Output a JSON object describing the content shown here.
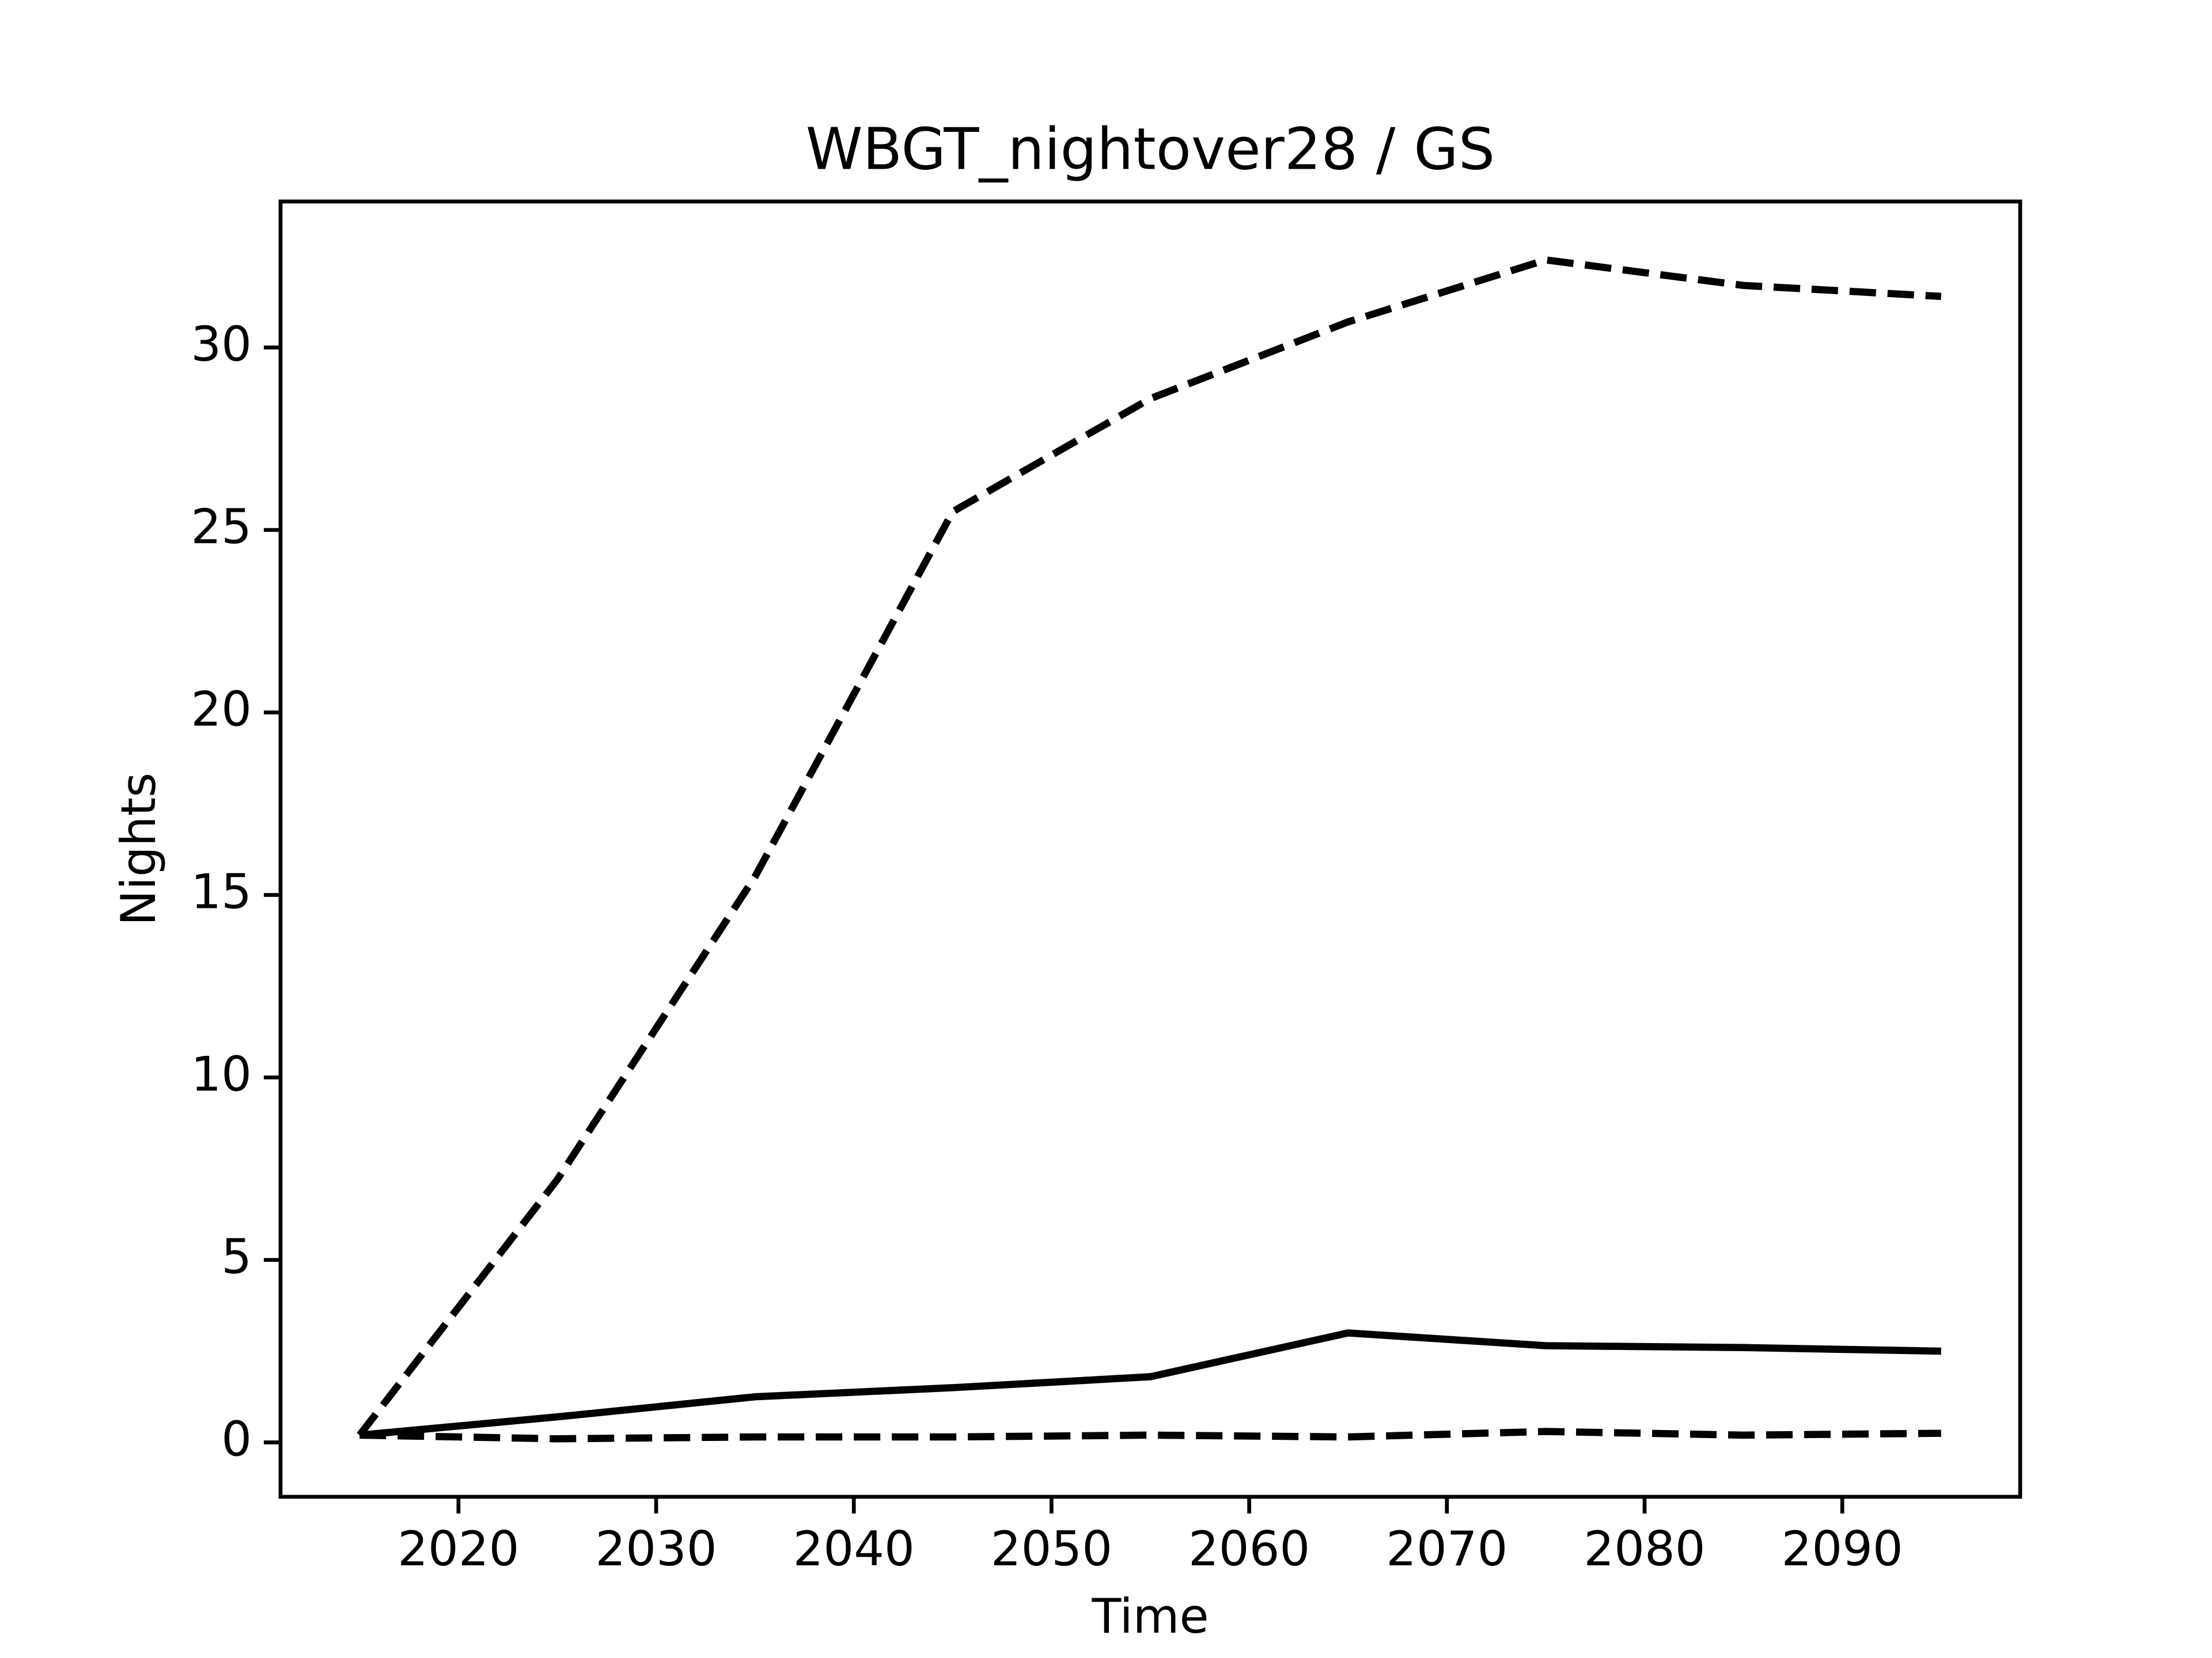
{
  "chart_data": {
    "type": "line",
    "title": "WBGT_nightover28 / GS",
    "xlabel": "Time",
    "ylabel": "Nights",
    "x": [
      2015,
      2025,
      2035,
      2045,
      2055,
      2065,
      2075,
      2085,
      2095
    ],
    "series": [
      {
        "color": "#000000",
        "style": "dashed",
        "values": [
          0.2,
          7.2,
          15.5,
          25.5,
          28.6,
          30.7,
          32.4,
          31.7,
          31.4
        ]
      },
      {
        "color": "#000000",
        "style": "solid",
        "values": [
          0.2,
          0.7,
          1.25,
          1.5,
          1.8,
          3.0,
          2.65,
          2.6,
          2.5
        ]
      },
      {
        "color": "#000000",
        "style": "dashed",
        "values": [
          0.2,
          0.1,
          0.15,
          0.15,
          0.2,
          0.15,
          0.3,
          0.2,
          0.25
        ]
      }
    ],
    "xlim": [
      2011,
      2099
    ],
    "xticks": [
      2020,
      2030,
      2040,
      2050,
      2060,
      2070,
      2080,
      2090
    ],
    "ylim": [
      -1.49,
      34.0
    ],
    "yticks": [
      0,
      5,
      10,
      15,
      20,
      25,
      30
    ],
    "grid": false
  }
}
